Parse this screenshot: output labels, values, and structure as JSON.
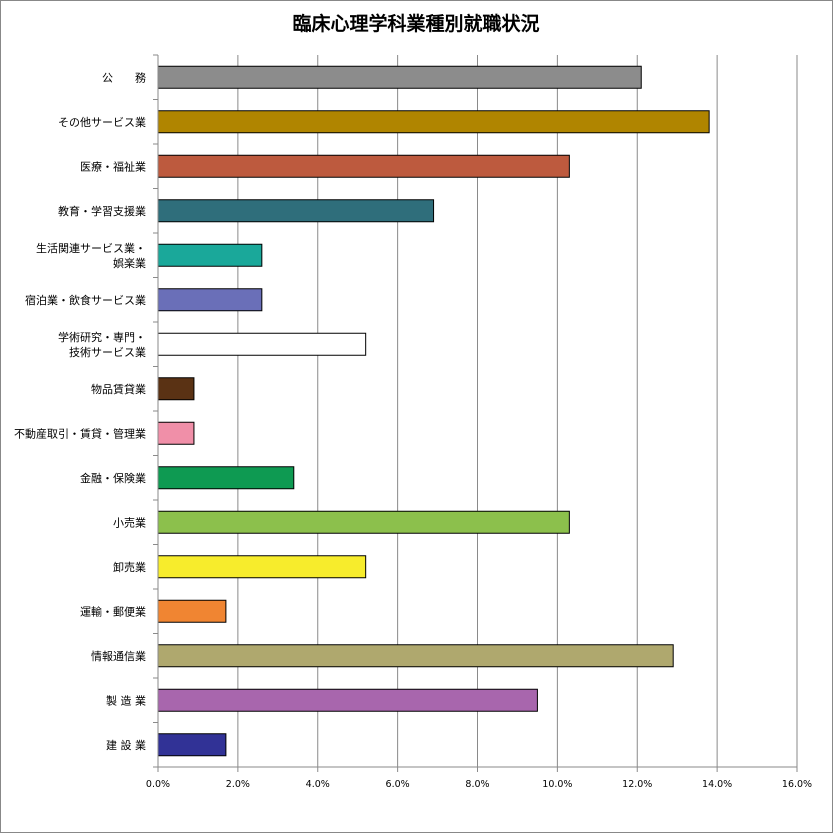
{
  "chart_data": {
    "type": "bar",
    "orientation": "horizontal",
    "title": "臨床心理学科業種別就職状況",
    "xlabel": "",
    "ylabel": "",
    "xlim": [
      0,
      16
    ],
    "ticks": [
      "0.0%",
      "2.0%",
      "4.0%",
      "6.0%",
      "8.0%",
      "10.0%",
      "12.0%",
      "14.0%",
      "16.0%"
    ],
    "grid": true,
    "legend": "none",
    "categories": [
      [
        "公　　務"
      ],
      [
        "その他サービス業"
      ],
      [
        "医療・福祉業"
      ],
      [
        "教育・学習支援業"
      ],
      [
        "生活関連サービス業・",
        "娯楽業"
      ],
      [
        "宿泊業・飲食サービス業"
      ],
      [
        "学術研究・専門・",
        "技術サービス業"
      ],
      [
        "物品賃貸業"
      ],
      [
        "不動産取引・賃貸・管理業"
      ],
      [
        "金融・保険業"
      ],
      [
        "小売業"
      ],
      [
        "卸売業"
      ],
      [
        "運輸・郵便業"
      ],
      [
        "情報通信業"
      ],
      [
        "製 造 業"
      ],
      [
        "建 設 業"
      ]
    ],
    "values": [
      12.1,
      13.8,
      10.3,
      6.9,
      2.6,
      2.6,
      5.2,
      0.9,
      0.9,
      3.4,
      10.3,
      5.2,
      1.7,
      12.9,
      9.5,
      1.7
    ],
    "colors": [
      "#8c8c8c",
      "#b08500",
      "#bd5a3e",
      "#2f6e7b",
      "#1aa89a",
      "#6a6fb8",
      "#ffffff",
      "#5a3214",
      "#f08fa8",
      "#0e9a52",
      "#8cc04c",
      "#f7ec2c",
      "#f08532",
      "#afa86e",
      "#a866ad",
      "#313296"
    ]
  }
}
